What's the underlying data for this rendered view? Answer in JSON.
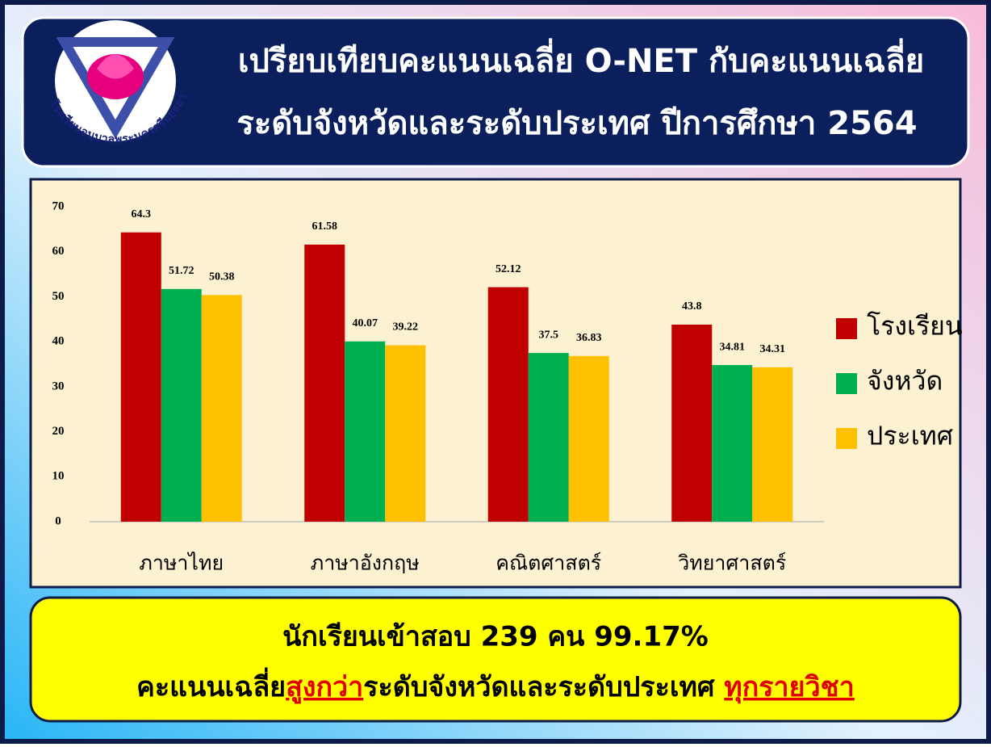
{
  "header": {
    "lines": [
      "เปรียบเทียบคะแนนเฉลี่ย O-NET กับคะแนนเฉลี่ย",
      "ระดับจังหวัดและระดับประเทศ ปีการศึกษา 2564"
    ]
  },
  "logo": {
    "text": "โรงเรียนอนุบาลพระนครศรีอยุธยา"
  },
  "chart_data": {
    "type": "bar",
    "categories": [
      "ภาษาไทย",
      "ภาษาอังกฤษ",
      "คณิตศาสตร์",
      "วิทยาศาสตร์"
    ],
    "series": [
      {
        "name": "โรงเรียน",
        "color": "#c00000",
        "values": [
          64.3,
          61.58,
          52.12,
          43.8
        ]
      },
      {
        "name": "จังหวัด",
        "color": "#00b050",
        "values": [
          51.72,
          40.07,
          37.5,
          34.81
        ]
      },
      {
        "name": "ประเทศ",
        "color": "#ffc000",
        "values": [
          50.38,
          39.22,
          36.83,
          34.31
        ]
      }
    ],
    "ylim": [
      0,
      70
    ],
    "yticks": [
      0,
      10,
      20,
      30,
      40,
      50,
      60,
      70
    ],
    "grid": false,
    "legend": "right"
  },
  "footer": {
    "line1": "นักเรียนเข้าสอบ 239 คน 99.17%",
    "line2": [
      "คะแนนเฉลี่ย",
      "สูงกว่า",
      "ระดับจังหวัดและระดับประเทศ ",
      "ทุกรายวิชา"
    ]
  }
}
